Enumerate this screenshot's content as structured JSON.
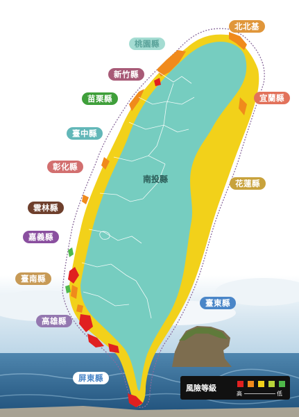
{
  "map": {
    "center_label": "南投縣",
    "counties": [
      {
        "name": "北北基",
        "color": "#e0963a"
      },
      {
        "name": "桃園縣",
        "color": "#a4dcd2"
      },
      {
        "name": "新竹縣",
        "color": "#a85a77"
      },
      {
        "name": "苗栗縣",
        "color": "#3f9f3a"
      },
      {
        "name": "臺中縣",
        "color": "#62b7b8"
      },
      {
        "name": "彰化縣",
        "color": "#d26f6f"
      },
      {
        "name": "雲林縣",
        "color": "#6e3f2c"
      },
      {
        "name": "嘉義縣",
        "color": "#8a4f9f"
      },
      {
        "name": "臺南縣",
        "color": "#c79a56"
      },
      {
        "name": "高雄縣",
        "color": "#9478b0"
      },
      {
        "name": "屏東縣",
        "color": "#ffffff"
      },
      {
        "name": "宜蘭縣",
        "color": "#e2725b"
      },
      {
        "name": "花蓮縣",
        "color": "#c8a23c"
      },
      {
        "name": "臺東縣",
        "color": "#4a86c8"
      }
    ]
  },
  "legend": {
    "title": "風險等級",
    "high": "高",
    "low": "低",
    "levels": [
      "#e02020",
      "#f08a1c",
      "#f2d11a",
      "#b8d43a",
      "#4fb84a"
    ]
  }
}
